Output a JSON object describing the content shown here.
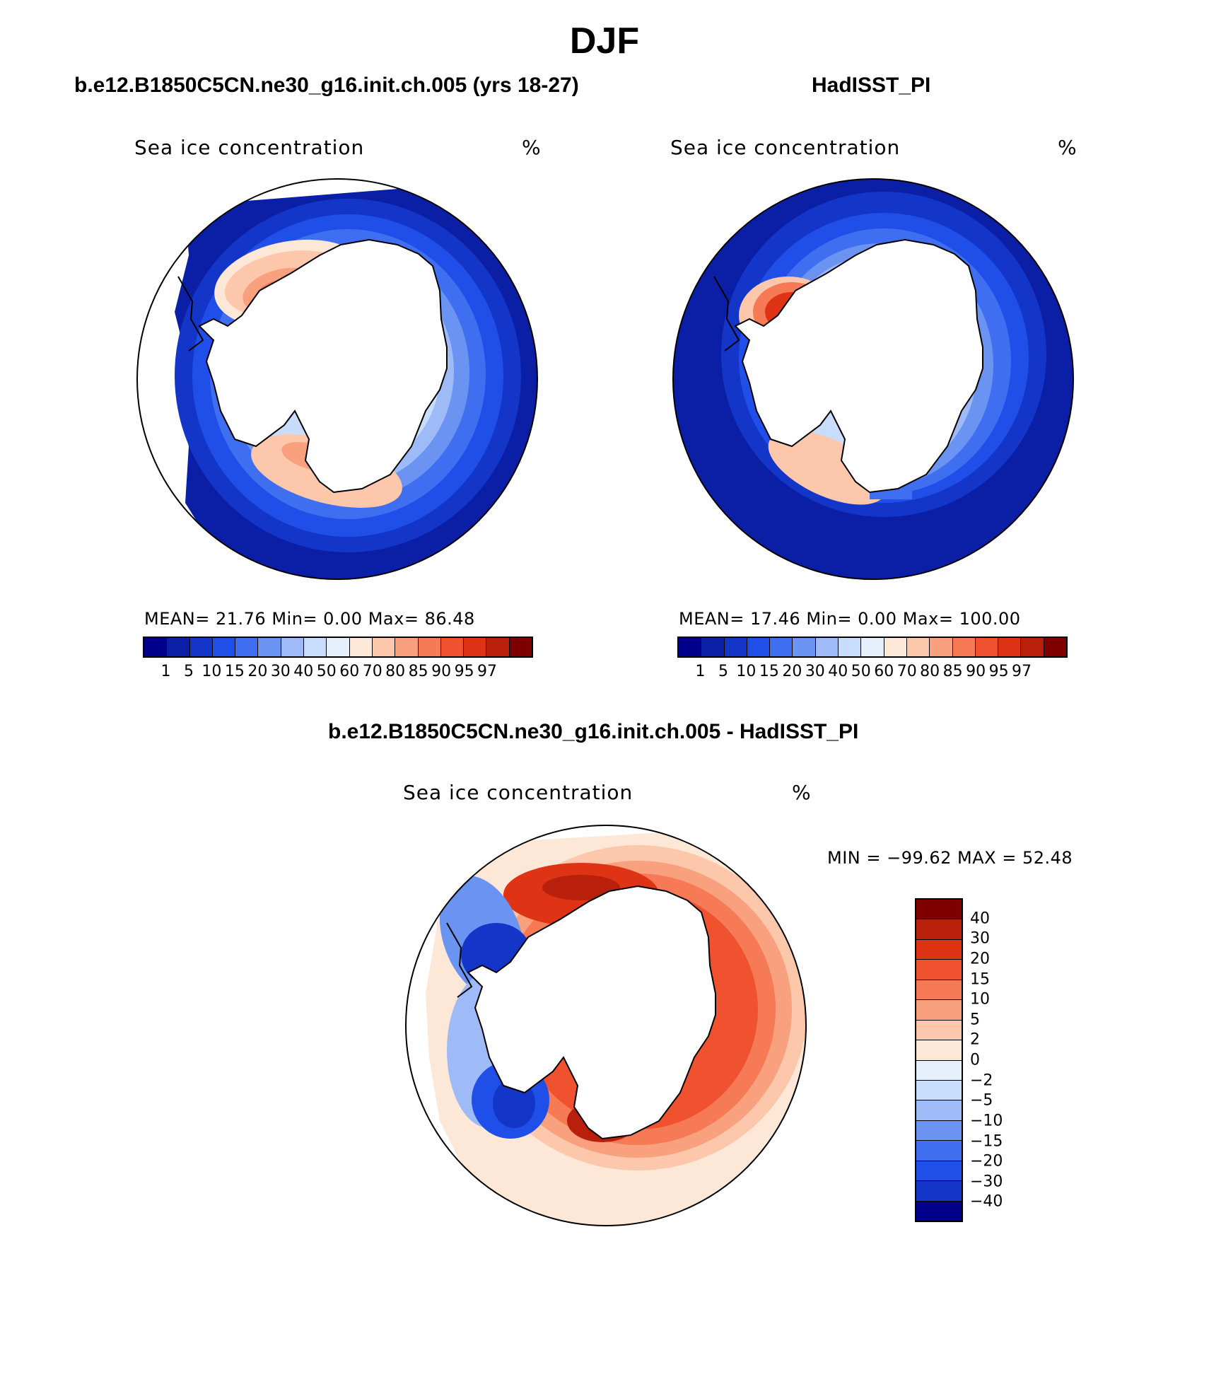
{
  "figure": {
    "title": "DJF"
  },
  "panels": {
    "model": {
      "title": "b.e12.B1850C5CN.ne30_g16.init.ch.005 (yrs 18-27)",
      "variable": "Sea ice concentration",
      "units": "%",
      "stats": "MEAN=   21.76   Min=     0.00   Max=   86.48",
      "mean": 21.76,
      "min": 0.0,
      "max": 86.48
    },
    "obs": {
      "title": "HadISST_PI",
      "variable": "Sea ice concentration",
      "units": "%",
      "stats": "MEAN=   17.46   Min=     0.00   Max= 100.00",
      "mean": 17.46,
      "min": 0.0,
      "max": 100.0
    },
    "diff": {
      "title": "b.e12.B1850C5CN.ne30_g16.init.ch.005 - HadISST_PI",
      "variable": "Sea ice concentration",
      "units": "%",
      "stats": "MIN = −99.62  MAX =   52.48",
      "min": -99.62,
      "max": 52.48
    }
  },
  "colorbars": {
    "absolute": {
      "labels": [
        "1",
        "5",
        "10",
        "15",
        "20",
        "30",
        "40",
        "50",
        "60",
        "70",
        "80",
        "85",
        "90",
        "95",
        "97"
      ],
      "colors": [
        "#00008b",
        "#0a1fa6",
        "#1336c8",
        "#1f4fe8",
        "#3f6ff0",
        "#6b93f2",
        "#9ebaf7",
        "#c8dcfb",
        "#e6f0fd",
        "#fde8d8",
        "#fcc7ab",
        "#f9a07e",
        "#f67a55",
        "#f0522f",
        "#de3315",
        "#b8200b",
        "#7f0000"
      ]
    },
    "difference": {
      "labels": [
        "40",
        "30",
        "20",
        "15",
        "10",
        "5",
        "2",
        "0",
        "−2",
        "−5",
        "−10",
        "−15",
        "−20",
        "−30",
        "−40"
      ],
      "colors": [
        "#7f0000",
        "#b8200b",
        "#de3315",
        "#f0522f",
        "#f67a55",
        "#f9a07e",
        "#fcc7ab",
        "#fde8d8",
        "#e6f0fd",
        "#c8dcfb",
        "#9ebaf7",
        "#6b93f2",
        "#3f6ff0",
        "#1f4fe8",
        "#1336c8",
        "#00008b"
      ]
    }
  }
}
